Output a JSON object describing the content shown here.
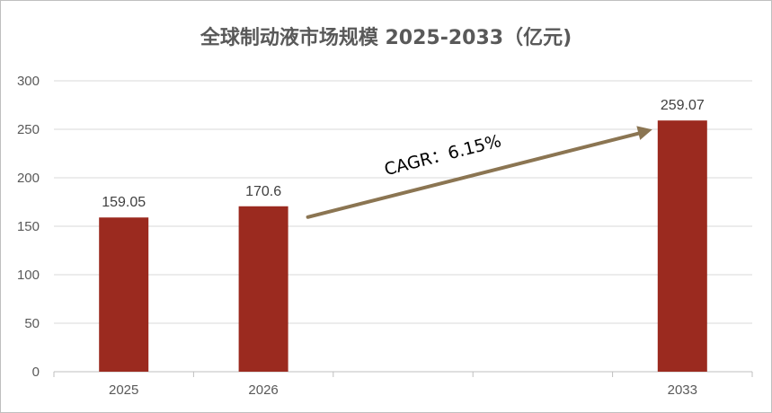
{
  "chart_data": {
    "type": "bar",
    "title": "全球制动液市场规模 2025-2033（亿元)",
    "categories": [
      "2025",
      "2026",
      "",
      "",
      "2033"
    ],
    "values": [
      159.05,
      170.6,
      null,
      null,
      259.07
    ],
    "data_labels": [
      "159.05",
      "170.6",
      "",
      "",
      "259.07"
    ],
    "ylim": [
      0,
      300
    ],
    "yticks": [
      0,
      50,
      100,
      150,
      200,
      250,
      300
    ],
    "grid": true,
    "legend": "none",
    "annotation": "CAGR：6.15%"
  },
  "colors": {
    "bar": "#9b2a1f",
    "arrow": "#8b7552",
    "grid": "#d9d9d9",
    "axis": "#bfbfbf"
  }
}
